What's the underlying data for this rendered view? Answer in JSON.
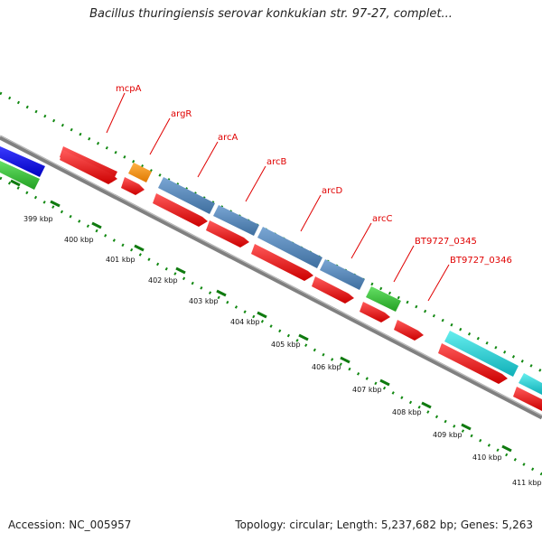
{
  "title": "Bacillus thuringiensis serovar konkukian str. 97-27, complet...",
  "accession": "Accession: NC_005957",
  "stats": "Topology: circular; Length: 5,237,682 bp; Genes: 5,263",
  "colors": {
    "backbone": "#8a8a8a",
    "cds": "#ee1111",
    "blue_track": "#4a7fb5",
    "label": "#e00000",
    "tick": "#118811"
  },
  "gene_labels": [
    "mcpA",
    "argR",
    "arcA",
    "arcB",
    "arcD",
    "arcC",
    "BT9727_0345",
    "BT9727_0346"
  ],
  "ruler_labels": [
    "399 kbp",
    "400 kbp",
    "401 kbp",
    "402 kbp",
    "403 kbp",
    "404 kbp",
    "405 kbp",
    "406 kbp",
    "407 kbp",
    "408 kbp",
    "409 kbp",
    "410 kbp",
    "411 kbp"
  ]
}
